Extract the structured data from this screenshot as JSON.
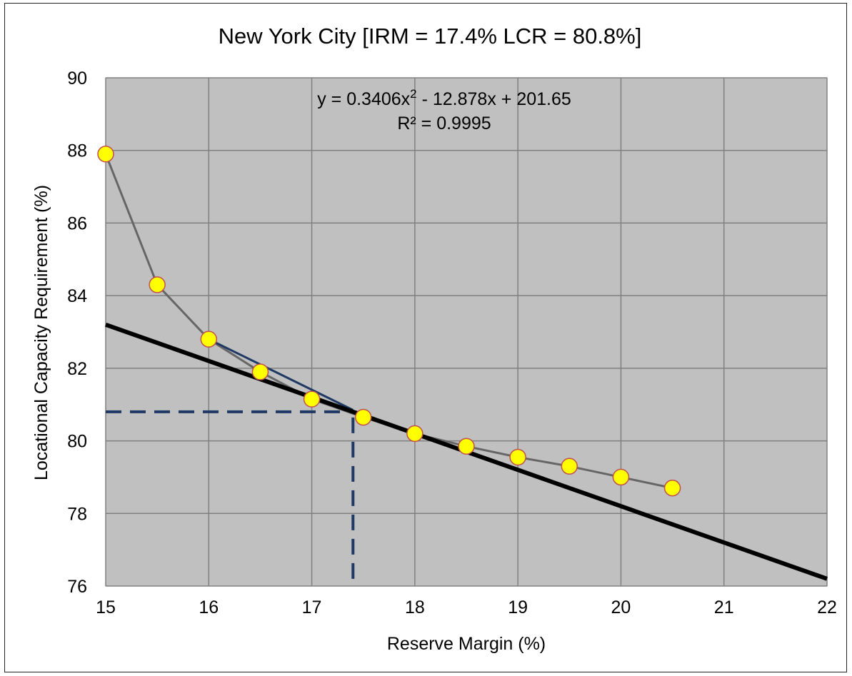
{
  "chart_data": {
    "type": "scatter",
    "title": "New York City [IRM = 17.4% LCR = 80.8%]",
    "xlabel": "Reserve Margin (%)",
    "ylabel": "Locational Capacity Requirement (%)",
    "xlim": [
      15,
      22
    ],
    "ylim": [
      76,
      90
    ],
    "x_ticks": [
      15,
      16,
      17,
      18,
      19,
      20,
      21,
      22
    ],
    "y_ticks": [
      76,
      78,
      80,
      82,
      84,
      86,
      88,
      90
    ],
    "grid": true,
    "background": "#c0c0c0",
    "series": [
      {
        "x": [
          15,
          15.5,
          16,
          16.5,
          17,
          17.5,
          18,
          18.5,
          19,
          19.5,
          20,
          20.5
        ],
        "y": [
          87.9,
          84.3,
          82.8,
          81.9,
          81.15,
          80.65,
          80.2,
          79.85,
          79.55,
          79.3,
          79.0,
          78.7
        ],
        "marker_color": "#ffff00",
        "marker_edge": "#c0504d",
        "line_color": "#666666"
      }
    ],
    "tangent_line": {
      "x": [
        15,
        22
      ],
      "y": [
        83.2,
        76.2
      ],
      "color": "#000000"
    },
    "fit_segment": {
      "x": [
        16,
        17.4
      ],
      "y": [
        82.8,
        80.85
      ],
      "color": "#1f3864"
    },
    "reference_point": {
      "x": 17.4,
      "y": 80.8,
      "color": "#1f3864",
      "style": "dashed"
    },
    "annotation": {
      "equation_prefix": "y = 0.3406x",
      "equation_sup": "2",
      "equation_suffix": " - 12.878x + 201.65",
      "r_squared": "R² = 0.9995"
    }
  }
}
